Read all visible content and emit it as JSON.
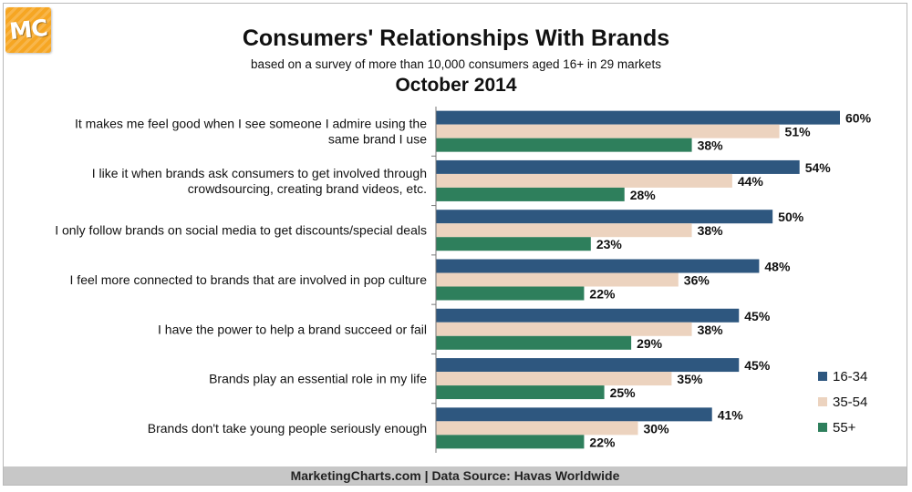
{
  "logo": {
    "text": "MC"
  },
  "title": "Consumers' Relationships With Brands",
  "subtitle": "based on a survey of more than 10,000 consumers aged 16+ in 29 markets",
  "subtitle2": "October 2014",
  "footer": "MarketingCharts.com | Data Source: Havas Worldwide",
  "chart_data": {
    "type": "bar",
    "orientation": "horizontal",
    "categories": [
      [
        "It makes me feel good when I see someone I admire using the",
        "same brand I use"
      ],
      [
        "I like it when brands ask consumers to get involved through",
        "crowdsourcing, creating brand videos, etc."
      ],
      [
        "I only follow brands on social media to get discounts/special deals"
      ],
      [
        "I feel more connected to brands that are involved in pop culture"
      ],
      [
        "I have the power to help a brand succeed or fail"
      ],
      [
        "Brands play an essential role in my life"
      ],
      [
        "Brands don't take young people seriously enough"
      ]
    ],
    "series": [
      {
        "name": "16-34",
        "color": "#2e577f",
        "values": [
          60,
          54,
          50,
          48,
          45,
          45,
          41
        ]
      },
      {
        "name": "35-54",
        "color": "#ecd3bf",
        "values": [
          51,
          44,
          38,
          36,
          38,
          35,
          30
        ]
      },
      {
        "name": "55+",
        "color": "#2e7f5c",
        "values": [
          38,
          28,
          23,
          22,
          29,
          25,
          22
        ]
      }
    ],
    "value_suffix": "%",
    "xlim": [
      0,
      60
    ],
    "grid": false,
    "legend_position": "right"
  }
}
